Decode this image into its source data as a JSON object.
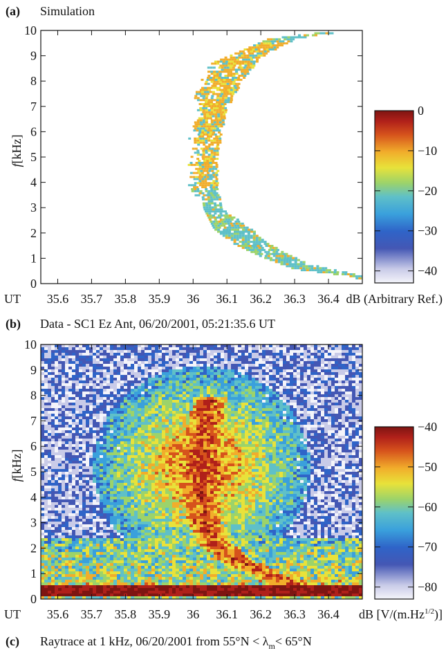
{
  "chart_data": [
    {
      "type": "heatmap",
      "panel_label": "(a)",
      "title": "Simulation",
      "x_prefix_label": "UT",
      "ylabel_italic": "f",
      "ylabel_rest": "[kHz]",
      "xlim": [
        35.55,
        36.5
      ],
      "ylim": [
        0,
        10
      ],
      "x_ticks": [
        "35.6",
        "35.7",
        "35.8",
        "35.9",
        "36",
        "36.1",
        "36.2",
        "36.3",
        "36.4"
      ],
      "x_tick_values": [
        35.6,
        35.7,
        35.8,
        35.9,
        36.0,
        36.1,
        36.2,
        36.3,
        36.4
      ],
      "y_ticks": [
        "0",
        "1",
        "2",
        "3",
        "4",
        "5",
        "6",
        "7",
        "8",
        "9",
        "10"
      ],
      "colorbar": {
        "ticks": [
          "0",
          "−10",
          "−20",
          "−30",
          "−40"
        ],
        "tick_values": [
          0,
          -10,
          -20,
          -30,
          -40
        ],
        "range": [
          -43,
          0
        ],
        "label": "dB (Arbitrary Ref.)"
      },
      "feature": {
        "description_points_note": "",
        "curve_inner": [
          [
            36.48,
            0.3
          ],
          [
            36.3,
            0.6
          ],
          [
            36.2,
            1.1
          ],
          [
            36.12,
            1.6
          ],
          [
            36.06,
            2.2
          ],
          [
            36.03,
            3.0
          ],
          [
            36.02,
            4.0
          ],
          [
            36.02,
            5.0
          ],
          [
            36.02,
            6.0
          ],
          [
            36.03,
            7.0
          ],
          [
            36.05,
            8.0
          ],
          [
            36.1,
            9.0
          ],
          [
            36.22,
            9.7
          ],
          [
            36.4,
            10.0
          ]
        ],
        "curve_outer": [
          [
            36.5,
            0.35
          ],
          [
            36.34,
            0.8
          ],
          [
            36.22,
            1.6
          ],
          [
            36.16,
            2.3
          ],
          [
            36.08,
            3.0
          ],
          [
            36.07,
            4.0
          ],
          [
            36.07,
            5.0
          ],
          [
            36.08,
            6.0
          ],
          [
            36.1,
            7.0
          ],
          [
            36.14,
            8.0
          ],
          [
            36.2,
            9.0
          ],
          [
            36.3,
            9.7
          ],
          [
            36.45,
            10.0
          ]
        ]
      }
    },
    {
      "type": "heatmap",
      "panel_label": "(b)",
      "title": "Data - SC1 Ez Ant, 06/20/2001, 05:21:35.6 UT",
      "x_prefix_label": "UT",
      "ylabel_italic": "f",
      "ylabel_rest": "[kHz]",
      "xlim": [
        35.55,
        36.5
      ],
      "ylim": [
        0,
        10
      ],
      "x_ticks": [
        "35.6",
        "35.7",
        "35.8",
        "35.9",
        "36",
        "36.1",
        "36.2",
        "36.3",
        "36.4"
      ],
      "x_tick_values": [
        35.6,
        35.7,
        35.8,
        35.9,
        36.0,
        36.1,
        36.2,
        36.3,
        36.4
      ],
      "y_ticks": [
        "0",
        "1",
        "2",
        "3",
        "4",
        "5",
        "6",
        "7",
        "8",
        "9",
        "10"
      ],
      "colorbar": {
        "ticks": [
          "−40",
          "−50",
          "−60",
          "−70",
          "−80"
        ],
        "tick_values": [
          -40,
          -50,
          -60,
          -70,
          -80
        ],
        "range": [
          -83,
          -40
        ],
        "label_prefix": "dB [V/(m.Hz",
        "label_sup": "1/2",
        "label_suffix": ")]"
      },
      "feature": {
        "noise_band_khz": [
          0.2,
          0.6
        ],
        "curve_inner": [
          [
            36.48,
            0.3
          ],
          [
            36.3,
            0.6
          ],
          [
            36.2,
            1.1
          ],
          [
            36.12,
            1.6
          ],
          [
            36.06,
            2.2
          ],
          [
            36.03,
            3.0
          ],
          [
            36.02,
            4.0
          ],
          [
            36.02,
            5.0
          ],
          [
            36.02,
            6.0
          ],
          [
            36.03,
            7.0
          ],
          [
            36.05,
            8.0
          ],
          [
            36.1,
            9.0
          ],
          [
            36.22,
            9.7
          ],
          [
            36.4,
            10.0
          ]
        ]
      }
    }
  ],
  "caption_c": {
    "panel_label": "(c)",
    "text_prefix": "Raytrace at 1 kHz, 06/20/2001 from 55°N < λ",
    "text_sub": "m",
    "text_suffix": "< 65°N"
  },
  "colors": {
    "scale": [
      "#f4f4fa",
      "#c9cbe8",
      "#4457b4",
      "#2f64c8",
      "#3aa0dc",
      "#5fc0c8",
      "#9cd36a",
      "#e8e23a",
      "#f1ad2b",
      "#d6531c",
      "#b0201a",
      "#7e1512"
    ]
  }
}
